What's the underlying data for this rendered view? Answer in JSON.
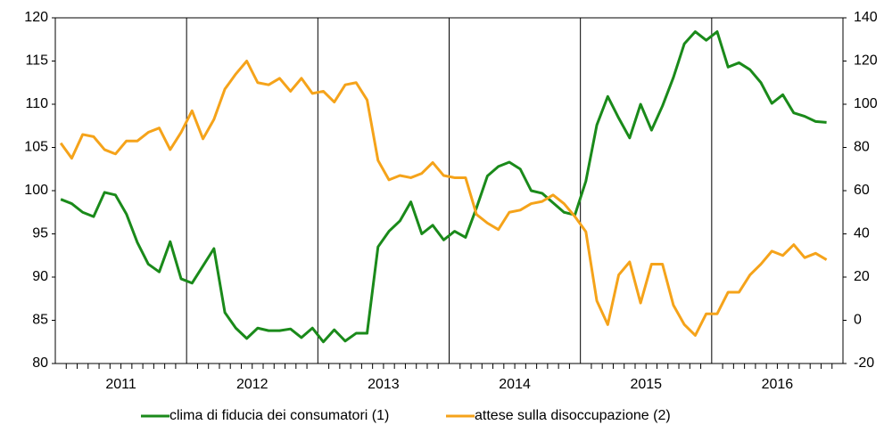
{
  "chart_data": {
    "type": "line",
    "years": [
      "2011",
      "2012",
      "2013",
      "2014",
      "2015",
      "2016"
    ],
    "ylim": [
      80,
      120
    ],
    "yticks": [
      80,
      85,
      90,
      95,
      100,
      105,
      110,
      115,
      120
    ],
    "y2lim": [
      -20,
      140
    ],
    "y2ticks": [
      -20,
      0,
      20,
      40,
      60,
      80,
      100,
      120,
      140
    ],
    "series": [
      {
        "name": "clima di fiducia dei consumatori (1)",
        "color": "#1a8a1a",
        "values": [
          99.0,
          98.5,
          97.5,
          97.0,
          99.8,
          99.5,
          97.3,
          94.0,
          91.5,
          90.6,
          94.1,
          89.8,
          89.3,
          91.3,
          93.3,
          85.9,
          84.1,
          82.9,
          84.1,
          83.8,
          83.8,
          84.0,
          83.0,
          84.1,
          82.5,
          83.9,
          82.6,
          83.5,
          83.5,
          93.5,
          95.3,
          96.5,
          98.7,
          95.0,
          96.0,
          94.3,
          95.3,
          94.6,
          98.0,
          101.7,
          102.8,
          103.3,
          102.5,
          100.0,
          99.7,
          98.6,
          97.5,
          97.2,
          101.1,
          107.6,
          110.9,
          108.4,
          106.1,
          110.0,
          107.0,
          109.8,
          113.1,
          117.0,
          118.4,
          117.4,
          118.4,
          114.3,
          114.8,
          114.0,
          112.5,
          110.1,
          111.1,
          109.0,
          108.6,
          108.0,
          107.9
        ]
      },
      {
        "name": "attese sulla disoccupazione (2)",
        "color": "#f5a31a",
        "axis": "y2",
        "values": [
          82,
          75,
          86,
          85,
          79,
          77,
          83,
          83,
          87,
          89,
          79,
          87,
          97,
          84,
          93,
          107,
          114,
          120,
          110,
          109,
          112,
          106,
          112,
          105,
          106,
          101,
          109,
          110,
          102,
          74,
          65,
          67,
          66,
          68,
          73,
          67,
          66,
          66,
          49,
          45,
          42,
          50,
          51,
          54,
          55,
          58,
          54,
          48,
          41,
          9,
          -2,
          21,
          27,
          8,
          26,
          26,
          7,
          -2,
          -7,
          3,
          3,
          13,
          13,
          21,
          26,
          32,
          30,
          35,
          29,
          31,
          28
        ]
      }
    ]
  }
}
